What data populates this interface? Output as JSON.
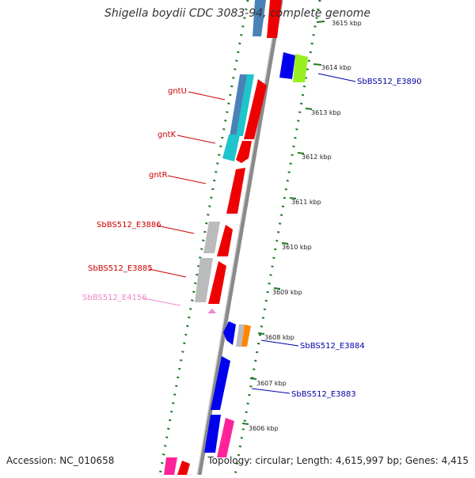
{
  "title": {
    "organism": "Shigella boydii CDC 3083-94",
    "suffix": ", complete genome"
  },
  "footer": {
    "accession": "Accession: NC_010658",
    "summary": "Topology: circular; Length: 4,615,997 bp; Genes: 4,415"
  },
  "ticks": [
    {
      "label": "3615 kbp"
    },
    {
      "label": "3614 kbp"
    },
    {
      "label": "3613 kbp"
    },
    {
      "label": "3612 kbp"
    },
    {
      "label": "3611 kbp"
    },
    {
      "label": "3610 kbp"
    },
    {
      "label": "3609 kbp"
    },
    {
      "label": "3608 kbp"
    },
    {
      "label": "3607 kbp"
    },
    {
      "label": "3606 kbp"
    }
  ],
  "gene_labels": [
    {
      "name": "gntU",
      "color": "#cc0000"
    },
    {
      "name": "gntK",
      "color": "#cc0000"
    },
    {
      "name": "gntR",
      "color": "#cc0000"
    },
    {
      "name": "SbBS512_E3886",
      "color": "#cc0000"
    },
    {
      "name": "SbBS512_E3885",
      "color": "#cc0000"
    },
    {
      "name": "SbBS512_E4156",
      "color": "#ee88cc"
    },
    {
      "name": "SbBS512_E3890",
      "color": "#0000aa"
    },
    {
      "name": "SbBS512_E3884",
      "color": "#0000aa"
    },
    {
      "name": "SbBS512_E3883",
      "color": "#0000aa"
    }
  ],
  "colors": {
    "backbone": "#8a8a8a",
    "tick_dots": "#1f7a1f",
    "cds_forward": "#ee0000",
    "cds_reverse": "#0000ee",
    "grey_feature": "#bbbbbb",
    "cyan_feature": "#1fc4cc",
    "steel_feature": "#4a82b8",
    "green_feature": "#99ee22",
    "orange_feature": "#ff8800",
    "pink_feature": "#ff2299"
  }
}
